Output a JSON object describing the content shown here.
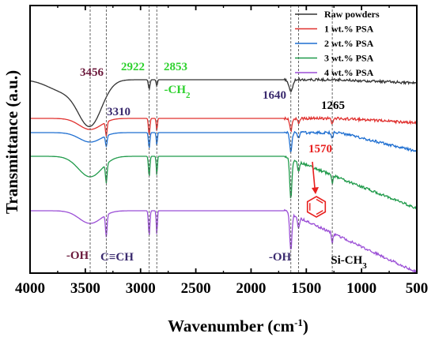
{
  "chart_data": {
    "type": "line",
    "xlabel": "Wavenumber (cm",
    "xlabel_sup": "-1",
    "xlabel_end": ")",
    "ylabel": "Transmittance (a.u.)",
    "xlim": [
      4000,
      500
    ],
    "x_reversed": true,
    "x_ticks": [
      "4000",
      "3500",
      "3000",
      "2500",
      "2000",
      "1500",
      "1000",
      "500"
    ],
    "y_ticks": [],
    "grid": false,
    "legend_position": "top-right",
    "series": [
      {
        "name": "Raw powders",
        "color": "#333333",
        "offset": 0.0
      },
      {
        "name": "1 wt.% PSA",
        "color": "#e0312f",
        "offset": 0.6
      },
      {
        "name": "2 wt.% PSA",
        "color": "#1f6fd1",
        "offset": 0.9
      },
      {
        "name": "3 wt.% PSA",
        "color": "#1f9a4a",
        "offset": 1.6
      },
      {
        "name": "4 wt.% PSA",
        "color": "#9b4fd6",
        "offset": 2.6
      }
    ],
    "reference_lines": [
      3456,
      3310,
      2922,
      2853,
      1640,
      1570,
      1265
    ],
    "annotations": [
      {
        "text": "3456",
        "color": "#6b1a3c"
      },
      {
        "text": "2922",
        "color": "#2ed12e"
      },
      {
        "text": "2853",
        "color": "#2ed12e"
      },
      {
        "text": "-CH",
        "sub": "2",
        "color": "#2ed12e"
      },
      {
        "text": "3310",
        "color": "#3a2a6e"
      },
      {
        "text": "1640",
        "color": "#3a2a6e"
      },
      {
        "text": "1265",
        "color": "#000000"
      },
      {
        "text": "1570",
        "color": "#e8201f"
      },
      {
        "text": "-OH",
        "color": "#6b1a3c"
      },
      {
        "text": "C≡CH",
        "color": "#3a2a6e"
      },
      {
        "text": "-OH",
        "color": "#3a2a6e"
      },
      {
        "text": "Si-CH",
        "sub": "3",
        "color": "#000000"
      }
    ]
  }
}
